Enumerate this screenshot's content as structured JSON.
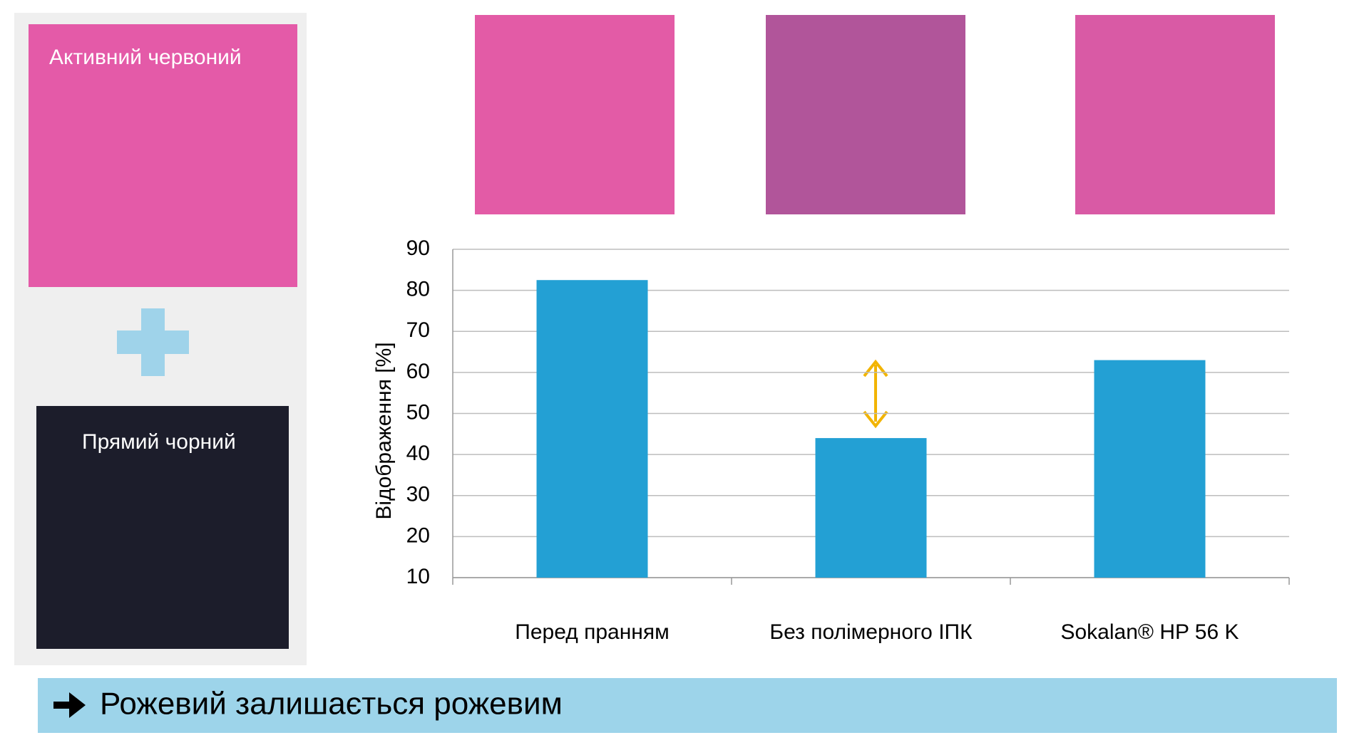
{
  "panel": {
    "top_label": "Активний червоний",
    "bottom_label": "Прямий чорний"
  },
  "caption": "Рожевий залишається рожевим",
  "chart_data": {
    "type": "bar",
    "y_label": "Відображення [%]",
    "categories": [
      "Перед пранням",
      "Без полімерного ІПК",
      "Sokalan® HP 56 K"
    ],
    "values": [
      82.5,
      44,
      63
    ],
    "color": "#23a0d4",
    "ylim": [
      10,
      90
    ],
    "yticks": [
      10,
      20,
      30,
      40,
      50,
      60,
      70,
      80,
      90
    ],
    "grid": true
  }
}
